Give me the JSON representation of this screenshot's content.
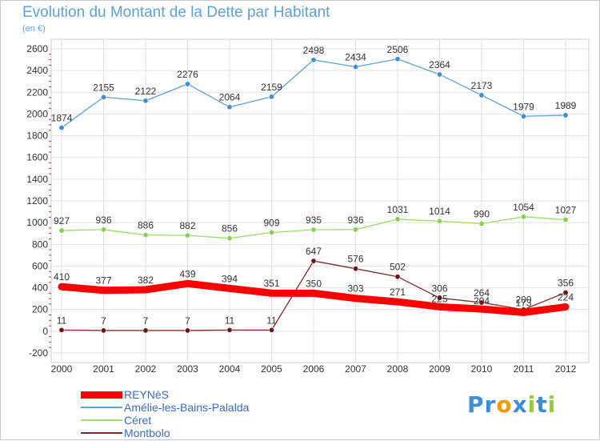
{
  "chart_data": {
    "type": "line",
    "title": "Evolution du Montant de la Dette par Habitant",
    "subtitle": "(en €)",
    "x": [
      "2000",
      "2001",
      "2002",
      "2003",
      "2004",
      "2005",
      "2006",
      "2007",
      "2008",
      "2009",
      "2010",
      "2011",
      "2012"
    ],
    "yticks": [
      "2600",
      "2400",
      "2200",
      "2000",
      "1800",
      "1600",
      "1400",
      "1200",
      "1000",
      "800",
      "600",
      "400",
      "200",
      "0",
      "-200"
    ],
    "ylim": [
      -200,
      2600
    ],
    "grid": true,
    "legend_position": "bottom-left",
    "series": [
      {
        "name": "REYNèS",
        "color": "#ff0000",
        "values": [
          410,
          377,
          382,
          439,
          394,
          351,
          350,
          303,
          271,
          225,
          204,
          173,
          224
        ]
      },
      {
        "name": "Amélie-les-Bains-Palalda",
        "color": "#5ea1d8",
        "values": [
          1874,
          2155,
          2122,
          2276,
          2064,
          2159,
          2498,
          2434,
          2506,
          2364,
          2173,
          1979,
          1989
        ]
      },
      {
        "name": "Céret",
        "color": "#99dd66",
        "values": [
          927,
          936,
          886,
          882,
          856,
          909,
          935,
          936,
          1031,
          1014,
          990,
          1054,
          1027
        ]
      },
      {
        "name": "Montbolo",
        "color": "#7a2b2b",
        "values": [
          11,
          7,
          7,
          7,
          11,
          11,
          647,
          576,
          502,
          306,
          264,
          200,
          356
        ]
      }
    ]
  },
  "logo": {
    "text": "Proxiti",
    "letters": [
      "P",
      "r",
      "o",
      "x",
      "i",
      "t",
      "i"
    ],
    "colors": [
      "#3c8fd6",
      "#3c8fd6",
      "#f29a00",
      "#3c8fd6",
      "#99cc33",
      "#3c8fd6",
      "#99cc33"
    ]
  }
}
